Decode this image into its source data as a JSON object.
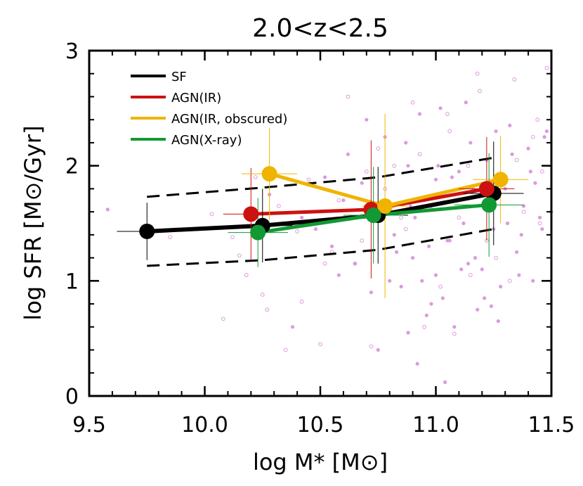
{
  "chart_data": {
    "type": "scatter",
    "title": "2.0<z<2.5",
    "xlabel": "log M* [M⊙]",
    "ylabel": "log SFR [M⊙/Gyr]",
    "xlim": [
      9.5,
      11.5
    ],
    "ylim": [
      0,
      3
    ],
    "xticks": [
      "9.5",
      "10.0",
      "10.5",
      "11.0",
      "11.5"
    ],
    "yticks": [
      "0",
      "1",
      "2",
      "3"
    ],
    "legend_position": "top-left",
    "series": [
      {
        "name": "SF",
        "color": "#000000",
        "line_width": "thick",
        "x": [
          9.75,
          10.25,
          10.75,
          11.25
        ],
        "y": [
          1.43,
          1.48,
          1.57,
          1.76
        ],
        "xerr": [
          0.13,
          0.13,
          0.13,
          0.13
        ],
        "yerr": [
          0.25,
          0.32,
          0.42,
          0.45
        ]
      },
      {
        "name": "AGN(IR)",
        "color": "#cc1111",
        "x": [
          10.2,
          10.72,
          11.22
        ],
        "y": [
          1.58,
          1.62,
          1.8
        ],
        "xerr": [
          0.12,
          0.08,
          0.12
        ],
        "yerr": [
          0.4,
          0.6,
          0.45
        ]
      },
      {
        "name": "AGN(IR, obscured)",
        "color": "#f0b400",
        "x": [
          10.28,
          10.78,
          11.28
        ],
        "y": [
          1.93,
          1.65,
          1.88
        ],
        "xerr": [
          0.12,
          0.1,
          0.12
        ],
        "yerr": [
          0.4,
          0.8,
          0.38
        ]
      },
      {
        "name": "AGN(X-ray)",
        "color": "#119933",
        "x": [
          10.23,
          10.73,
          11.23
        ],
        "y": [
          1.42,
          1.57,
          1.66
        ],
        "xerr": [
          0.13,
          0.13,
          0.15
        ],
        "yerr": [
          0.3,
          0.42,
          0.45
        ]
      }
    ],
    "dashed_envelope": {
      "color": "#000000",
      "upper": {
        "x": [
          9.75,
          10.25,
          10.75,
          11.25
        ],
        "y": [
          1.73,
          1.81,
          1.9,
          2.07
        ]
      },
      "lower": {
        "x": [
          9.75,
          10.25,
          10.75,
          11.25
        ],
        "y": [
          1.13,
          1.18,
          1.27,
          1.45
        ]
      }
    },
    "background_points": {
      "color": "#dd99dd",
      "filled": {
        "x": [
          9.58,
          10.28,
          10.42,
          10.55,
          10.62,
          10.68,
          10.72,
          10.78,
          10.82,
          10.85,
          10.88,
          10.9,
          10.92,
          10.95,
          10.98,
          11.0,
          11.02,
          11.05,
          11.08,
          11.1,
          11.12,
          11.15,
          11.18,
          11.2,
          11.22,
          11.25,
          11.28,
          11.3,
          11.32,
          11.35,
          11.38,
          11.4,
          11.42,
          11.45,
          11.48,
          11.5,
          10.6,
          10.65,
          10.7,
          10.8,
          10.86,
          10.93,
          10.97,
          11.03,
          11.07,
          11.13,
          11.17,
          11.23,
          11.27,
          11.33,
          11.37,
          11.43,
          11.47,
          10.38,
          10.48,
          10.52,
          10.58,
          10.75,
          10.83,
          10.87,
          10.91,
          10.96,
          11.01,
          11.06,
          11.11,
          11.16,
          11.21,
          11.26,
          11.31,
          11.36,
          11.41,
          11.46,
          10.88,
          10.94,
          11.04,
          10.76,
          10.89,
          11.0,
          11.14,
          11.24
        ],
        "y": [
          1.62,
          1.75,
          1.55,
          1.3,
          2.1,
          1.85,
          0.9,
          2.25,
          1.4,
          0.95,
          2.0,
          1.2,
          0.28,
          1.7,
          0.8,
          1.05,
          2.5,
          1.35,
          0.6,
          1.95,
          1.5,
          2.2,
          0.75,
          1.1,
          2.05,
          1.45,
          0.95,
          1.8,
          2.35,
          1.25,
          1.65,
          2.15,
          1.0,
          1.55,
          2.3,
          1.6,
          1.7,
          1.15,
          2.4,
          1.0,
          1.6,
          2.45,
          1.3,
          0.85,
          1.9,
          2.55,
          1.2,
          1.75,
          0.65,
          2.1,
          1.4,
          1.85,
          2.25,
          0.6,
          1.45,
          1.9,
          1.05,
          0.4,
          1.25,
          2.2,
          1.55,
          0.7,
          2.0,
          1.35,
          1.1,
          1.8,
          0.85,
          2.3,
          1.5,
          1.05,
          1.95,
          1.45,
          0.55,
          1.0,
          0.12,
          1.55,
          1.65,
          1.88,
          1.15,
          0.78
        ]
      },
      "open": {
        "x": [
          9.85,
          10.03,
          10.08,
          10.12,
          10.18,
          10.22,
          10.27,
          10.32,
          10.35,
          10.45,
          10.5,
          10.55,
          10.62,
          10.68,
          10.72,
          10.78,
          10.82,
          10.87,
          10.93,
          10.98,
          11.02,
          11.06,
          11.1,
          11.14,
          11.18,
          11.22,
          11.26,
          11.3,
          11.34,
          11.38,
          11.42,
          11.46,
          11.48,
          10.15,
          10.25,
          10.4,
          10.58,
          10.65,
          10.75,
          10.85,
          10.95,
          11.05,
          11.15,
          11.25,
          11.35,
          11.45,
          10.42,
          10.52,
          10.7,
          10.9,
          11.08,
          11.19,
          11.32,
          11.44
        ],
        "y": [
          1.38,
          1.58,
          0.67,
          1.38,
          1.05,
          1.9,
          0.75,
          1.65,
          0.4,
          1.88,
          0.45,
          1.25,
          2.6,
          1.35,
          0.43,
          1.8,
          2.0,
          1.45,
          2.1,
          1.62,
          0.95,
          2.3,
          1.55,
          2.0,
          2.8,
          1.35,
          1.2,
          1.9,
          2.75,
          1.6,
          2.25,
          1.95,
          2.85,
          1.22,
          0.88,
          1.43,
          1.7,
          1.15,
          2.15,
          1.55,
          0.6,
          2.45,
          1.05,
          1.7,
          2.05,
          1.5,
          0.82,
          1.15,
          1.95,
          2.55,
          0.54,
          2.65,
          1.0,
          2.4
        ]
      }
    }
  }
}
